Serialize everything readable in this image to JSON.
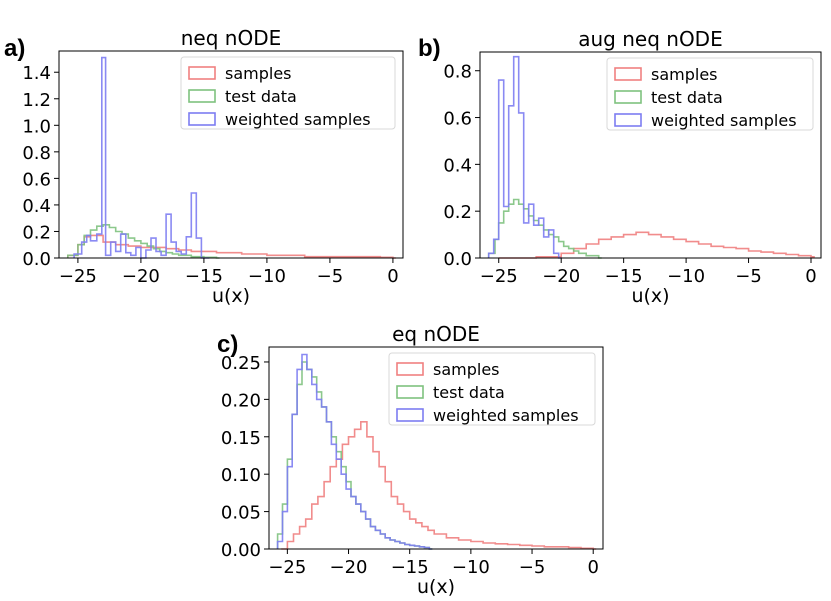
{
  "colors": {
    "samples": "#f08080",
    "test_data": "#7fc27f",
    "weighted_samples": "#7d7df2",
    "axis": "#000000"
  },
  "chart_data": [
    {
      "id": "a",
      "panel_label": "a)",
      "type": "histogram-step",
      "title": "neq nODE",
      "xlabel": "u(x)",
      "ylabel": "",
      "xlim": [
        -26.5,
        0.8
      ],
      "ylim": [
        0,
        1.56
      ],
      "xticks": [
        -25,
        -20,
        -15,
        -10,
        -5,
        0
      ],
      "xtick_labels": [
        "−25",
        "−20",
        "−15",
        "−10",
        "−5",
        "0"
      ],
      "yticks": [
        0,
        0.2,
        0.4,
        0.6,
        0.8,
        1.0,
        1.2,
        1.4
      ],
      "ytick_labels": [
        "0.0",
        "0.2",
        "0.4",
        "0.6",
        "0.8",
        "1.0",
        "1.2",
        "1.4"
      ],
      "legend": {
        "placement": "upper-right",
        "entries": [
          "samples",
          "test data",
          "weighted samples"
        ]
      },
      "series": [
        {
          "name": "samples",
          "color_key": "samples",
          "x": [
            -25.8,
            -25,
            -24.5,
            -24,
            -23,
            -22,
            -21,
            -20,
            -19,
            -18,
            -17,
            -16,
            -15,
            -14,
            -13,
            -12,
            -11,
            -10,
            -9,
            -8,
            -7,
            -6,
            -5,
            -4,
            -3,
            -2,
            -1,
            0
          ],
          "y": [
            0.02,
            0.1,
            0.16,
            0.17,
            0.12,
            0.1,
            0.09,
            0.08,
            0.08,
            0.07,
            0.06,
            0.05,
            0.05,
            0.04,
            0.04,
            0.03,
            0.03,
            0.02,
            0.02,
            0.02,
            0.01,
            0.01,
            0.01,
            0.01,
            0.01,
            0.01,
            0.005,
            0.0
          ]
        },
        {
          "name": "test data",
          "color_key": "test_data",
          "x": [
            -25.8,
            -25,
            -24.5,
            -24,
            -23.5,
            -23,
            -22.5,
            -22,
            -21.5,
            -21,
            -20.5,
            -20,
            -19.5,
            -19,
            -18.5,
            -18,
            -17.5,
            -17,
            -16,
            -15,
            -14
          ],
          "y": [
            0.02,
            0.1,
            0.17,
            0.21,
            0.24,
            0.25,
            0.23,
            0.2,
            0.18,
            0.15,
            0.13,
            0.11,
            0.09,
            0.07,
            0.05,
            0.04,
            0.03,
            0.02,
            0.01,
            0.005,
            0.0
          ]
        },
        {
          "name": "weighted samples",
          "color_key": "weighted_samples",
          "x": [
            -25.3,
            -24.7,
            -24.3,
            -24,
            -23.5,
            -23.1,
            -22.8,
            -22.4,
            -22,
            -21.6,
            -21.2,
            -20.8,
            -20.4,
            -20,
            -19.6,
            -19.2,
            -18.8,
            -18.4,
            -18,
            -17.6,
            -17.2,
            -16.8,
            -16.4,
            -16,
            -15.6,
            -15.2,
            -14.8
          ],
          "y": [
            0.03,
            0.12,
            0.17,
            0.13,
            0.18,
            1.51,
            0.02,
            0.12,
            0.05,
            0.18,
            0.04,
            0.02,
            0.08,
            0.0,
            0.06,
            0.15,
            0.05,
            0.02,
            0.33,
            0.12,
            0.05,
            0.03,
            0.16,
            0.49,
            0.15,
            0.0,
            0.0
          ]
        }
      ]
    },
    {
      "id": "b",
      "panel_label": "b)",
      "type": "histogram-step",
      "title": "aug neq nODE",
      "xlabel": "u(x)",
      "ylabel": "",
      "xlim": [
        -26.5,
        0.8
      ],
      "ylim": [
        0,
        0.88
      ],
      "xticks": [
        -25,
        -20,
        -15,
        -10,
        -5,
        0
      ],
      "xtick_labels": [
        "−25",
        "−20",
        "−15",
        "−10",
        "−5",
        "0"
      ],
      "yticks": [
        0,
        0.2,
        0.4,
        0.6,
        0.8
      ],
      "ytick_labels": [
        "0.0",
        "0.2",
        "0.4",
        "0.6",
        "0.8"
      ],
      "legend": {
        "placement": "upper-right",
        "entries": [
          "samples",
          "test data",
          "weighted samples"
        ]
      },
      "series": [
        {
          "name": "samples",
          "color_key": "samples",
          "x": [
            -25,
            -22,
            -20,
            -19,
            -18,
            -17,
            -16,
            -15,
            -14,
            -13,
            -12,
            -11,
            -10,
            -9,
            -8,
            -7,
            -6,
            -5,
            -4,
            -3,
            -2,
            -1,
            0
          ],
          "y": [
            0.0,
            0.005,
            0.02,
            0.04,
            0.06,
            0.08,
            0.09,
            0.1,
            0.11,
            0.1,
            0.09,
            0.08,
            0.07,
            0.06,
            0.05,
            0.045,
            0.04,
            0.03,
            0.025,
            0.02,
            0.015,
            0.01,
            0.005
          ]
        },
        {
          "name": "test data",
          "color_key": "test_data",
          "x": [
            -25.8,
            -25.3,
            -25,
            -24.6,
            -24.2,
            -23.8,
            -23.4,
            -23,
            -22.6,
            -22.2,
            -21.8,
            -21.4,
            -21,
            -20.6,
            -20.2,
            -19.8,
            -19.4,
            -19,
            -18.6,
            -18,
            -17
          ],
          "y": [
            0.02,
            0.08,
            0.15,
            0.2,
            0.23,
            0.25,
            0.23,
            0.21,
            0.18,
            0.16,
            0.14,
            0.12,
            0.1,
            0.09,
            0.07,
            0.05,
            0.04,
            0.03,
            0.02,
            0.01,
            0.0
          ]
        },
        {
          "name": "weighted samples",
          "color_key": "weighted_samples",
          "x": [
            -25.8,
            -25.4,
            -25,
            -24.6,
            -24.2,
            -23.8,
            -23.4,
            -23,
            -22.6,
            -22.2,
            -21.8,
            -21.4,
            -21,
            -20.6,
            -20.2
          ],
          "y": [
            0.02,
            0.08,
            0.76,
            0.22,
            0.65,
            0.86,
            0.62,
            0.15,
            0.23,
            0.14,
            0.17,
            0.09,
            0.12,
            0.02,
            0.0
          ]
        }
      ]
    },
    {
      "id": "c",
      "panel_label": "c)",
      "type": "histogram-step",
      "title": "eq nODE",
      "xlabel": "u(x)",
      "ylabel": "",
      "xlim": [
        -26.5,
        0.8
      ],
      "ylim": [
        0,
        0.27
      ],
      "xticks": [
        -25,
        -20,
        -15,
        -10,
        -5,
        0
      ],
      "xtick_labels": [
        "−25",
        "−20",
        "−15",
        "−10",
        "−5",
        "0"
      ],
      "yticks": [
        0,
        0.05,
        0.1,
        0.15,
        0.2,
        0.25
      ],
      "ytick_labels": [
        "0.00",
        "0.05",
        "0.10",
        "0.15",
        "0.20",
        "0.25"
      ],
      "legend": {
        "placement": "upper-right",
        "entries": [
          "samples",
          "test data",
          "weighted samples"
        ]
      },
      "series": [
        {
          "name": "samples",
          "color_key": "samples",
          "x": [
            -25.5,
            -25,
            -24.5,
            -24,
            -23.5,
            -23,
            -22.5,
            -22,
            -21.5,
            -21,
            -20.5,
            -20,
            -19.5,
            -19,
            -18.5,
            -18,
            -17.5,
            -17,
            -16.5,
            -16,
            -15.5,
            -15,
            -14.5,
            -14,
            -13.5,
            -13,
            -12,
            -11,
            -10,
            -9,
            -8,
            -7,
            -6,
            -5,
            -4,
            -3,
            -2,
            -1,
            0
          ],
          "y": [
            0.0,
            0.01,
            0.02,
            0.03,
            0.04,
            0.06,
            0.07,
            0.09,
            0.11,
            0.12,
            0.14,
            0.15,
            0.16,
            0.17,
            0.15,
            0.13,
            0.11,
            0.09,
            0.07,
            0.06,
            0.05,
            0.04,
            0.035,
            0.03,
            0.025,
            0.02,
            0.015,
            0.012,
            0.01,
            0.008,
            0.007,
            0.006,
            0.005,
            0.004,
            0.003,
            0.003,
            0.002,
            0.001,
            0.0
          ]
        },
        {
          "name": "test data",
          "color_key": "test_data",
          "x": [
            -25.8,
            -25.4,
            -25,
            -24.6,
            -24.2,
            -23.8,
            -23.4,
            -23,
            -22.6,
            -22.2,
            -21.8,
            -21.4,
            -21,
            -20.6,
            -20.2,
            -19.8,
            -19.4,
            -19,
            -18.6,
            -18.2,
            -17.8,
            -17.4,
            -17,
            -16.6,
            -16.2,
            -15.8,
            -15.4,
            -15,
            -14.6,
            -14.2,
            -13.8,
            -13.4
          ],
          "y": [
            0.02,
            0.06,
            0.12,
            0.18,
            0.22,
            0.25,
            0.24,
            0.23,
            0.21,
            0.19,
            0.17,
            0.15,
            0.13,
            0.11,
            0.09,
            0.07,
            0.06,
            0.05,
            0.04,
            0.03,
            0.025,
            0.02,
            0.015,
            0.012,
            0.01,
            0.008,
            0.006,
            0.005,
            0.004,
            0.003,
            0.002,
            0.0
          ]
        },
        {
          "name": "weighted samples",
          "color_key": "weighted_samples",
          "x": [
            -25.8,
            -25.4,
            -25,
            -24.6,
            -24.2,
            -23.8,
            -23.4,
            -23,
            -22.6,
            -22.2,
            -21.8,
            -21.4,
            -21,
            -20.6,
            -20.2,
            -19.8,
            -19.4,
            -19,
            -18.6,
            -18.2,
            -17.8,
            -17.4,
            -17,
            -16.6,
            -16.2,
            -15.8,
            -15.4,
            -15,
            -14.6,
            -14.2,
            -13.8,
            -13.4
          ],
          "y": [
            0.01,
            0.05,
            0.11,
            0.18,
            0.24,
            0.26,
            0.24,
            0.22,
            0.2,
            0.19,
            0.17,
            0.14,
            0.12,
            0.1,
            0.08,
            0.07,
            0.06,
            0.05,
            0.04,
            0.03,
            0.025,
            0.02,
            0.015,
            0.012,
            0.01,
            0.008,
            0.006,
            0.005,
            0.004,
            0.003,
            0.002,
            0.0
          ]
        }
      ]
    }
  ]
}
